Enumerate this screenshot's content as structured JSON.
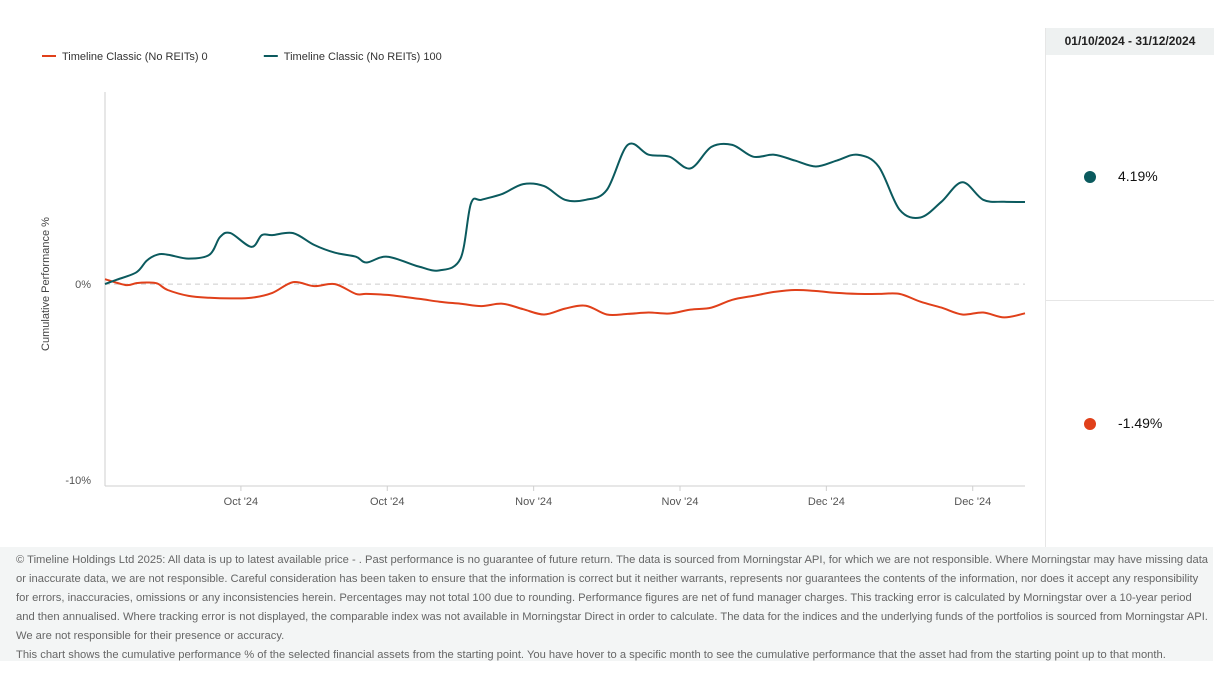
{
  "chart_data": {
    "type": "line",
    "ylabel": "Cumulative Performance %",
    "xlabel": "",
    "y_ticks": [
      "0%",
      "-10%"
    ],
    "y_tick_values": [
      0,
      -10
    ],
    "ylim": [
      -10.3,
      9.8
    ],
    "x_ticks": [
      "Oct '24",
      "Oct '24",
      "Nov '24",
      "Nov '24",
      "Dec '24",
      "Dec '24"
    ],
    "x_tick_days": [
      14,
      28,
      42,
      56,
      70,
      84
    ],
    "xlim": [
      1,
      89
    ],
    "legend_position": "top-left",
    "series": [
      {
        "name": "Timeline Classic (No REITs) 0",
        "color": "#e0401a",
        "x": [
          1,
          3,
          4,
          5,
          6,
          7,
          9,
          11,
          13,
          15,
          17,
          19,
          21,
          23,
          25,
          26,
          28,
          31,
          33,
          35,
          37,
          39,
          41,
          43,
          45,
          47,
          49,
          51,
          53,
          55,
          57,
          59,
          61,
          63,
          65,
          67,
          69,
          71,
          73,
          75,
          77,
          79,
          81,
          83,
          85,
          87,
          89
        ],
        "values": [
          0.25,
          -0.05,
          0.05,
          0.08,
          0.03,
          -0.3,
          -0.6,
          -0.7,
          -0.73,
          -0.7,
          -0.45,
          0.1,
          -0.1,
          0.0,
          -0.5,
          -0.5,
          -0.55,
          -0.75,
          -0.9,
          -1.0,
          -1.12,
          -1.0,
          -1.28,
          -1.55,
          -1.25,
          -1.1,
          -1.55,
          -1.52,
          -1.45,
          -1.5,
          -1.3,
          -1.2,
          -0.8,
          -0.6,
          -0.4,
          -0.3,
          -0.35,
          -0.45,
          -0.5,
          -0.5,
          -0.5,
          -0.9,
          -1.2,
          -1.55,
          -1.45,
          -1.7,
          -1.49
        ]
      },
      {
        "name": "Timeline Classic (No REITs) 100",
        "color": "#0b5a5e",
        "x": [
          1,
          2,
          4,
          5,
          6,
          7,
          9,
          11,
          12,
          13,
          15,
          16,
          17,
          19,
          21,
          23,
          25,
          26,
          28,
          31,
          33,
          35,
          36,
          37,
          39,
          41,
          43,
          45,
          47,
          49,
          51,
          53,
          55,
          57,
          59,
          61,
          63,
          65,
          67,
          69,
          71,
          73,
          75,
          77,
          79,
          81,
          83,
          85,
          87,
          89
        ],
        "values": [
          0.0,
          0.2,
          0.6,
          1.2,
          1.5,
          1.5,
          1.3,
          1.5,
          2.4,
          2.6,
          1.9,
          2.5,
          2.5,
          2.6,
          2.0,
          1.6,
          1.4,
          1.1,
          1.4,
          0.9,
          0.7,
          1.3,
          4.1,
          4.3,
          4.6,
          5.1,
          5.0,
          4.3,
          4.3,
          4.8,
          7.1,
          6.6,
          6.5,
          5.9,
          7.0,
          7.1,
          6.5,
          6.6,
          6.3,
          6.0,
          6.3,
          6.6,
          6.0,
          3.8,
          3.4,
          4.2,
          5.2,
          4.3,
          4.2,
          4.19
        ]
      }
    ]
  },
  "side": {
    "date_range": "01/10/2024 - 31/12/2024",
    "values": [
      {
        "value": "4.19%",
        "color": "#0b5a5e"
      },
      {
        "value": "-1.49%",
        "color": "#e0401a"
      }
    ]
  },
  "footer": {
    "disclaimer": "© Timeline Holdings Ltd 2025: All data is up to latest available price - . Past performance is no guarantee of future return. The data is sourced from Morningstar API, for which we are not responsible. Where Morningstar may have missing data or inaccurate data, we are not responsible. Careful consideration has been taken to ensure that the information is correct but it neither warrants, represents nor guarantees the contents of the information, nor does it accept any responsibility for errors, inaccuracies, omissions or any inconsistencies herein. Percentages may not total 100 due to rounding. Performance figures are net of fund manager charges. This tracking error is calculated by Morningstar over a 10-year period and then annualised. Where tracking error is not displayed, the comparable index was not available in Morningstar Direct in order to calculate. The data for the indices and the underlying funds of the portfolios is sourced from Morningstar API. We are not responsible for their presence or accuracy.",
    "note": "This chart shows the cumulative performance % of the selected financial assets from the starting point. You have hover to a specific month to see the cumulative performance that the asset had from the starting point up to that month."
  }
}
